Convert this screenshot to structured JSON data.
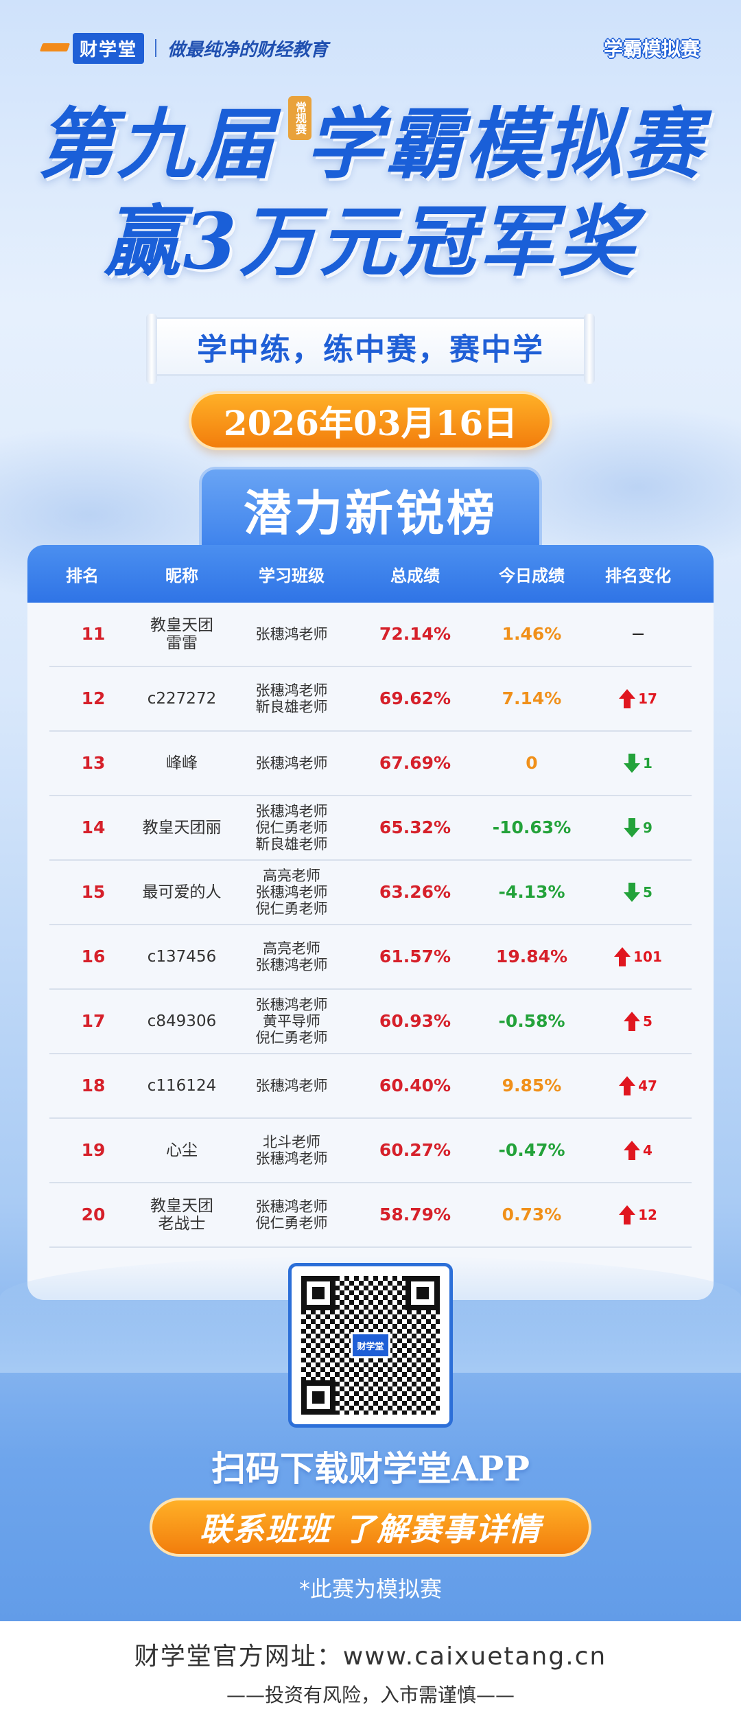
{
  "header": {
    "logo": "财学堂",
    "slogan": "做最纯净的财经教育",
    "badge": "学霸模拟赛"
  },
  "title": {
    "line1": "第九届 学霸模拟赛",
    "line2": "赢3万元冠军奖",
    "seal": "常规赛"
  },
  "tagline": "学中练，练中赛，赛中学",
  "date": "2026年03月16日",
  "board_title": "潜力新锐榜",
  "table": {
    "headers": [
      "排名",
      "昵称",
      "学习班级",
      "总成绩",
      "今日成绩",
      "排名变化"
    ],
    "rows": [
      {
        "rank": "11",
        "nick": "教皇天团\n雷雷",
        "class": "张穗鸿老师",
        "total": "72.14%",
        "today": "1.46%",
        "today_color": "#f0901a",
        "dir": "none",
        "change": ""
      },
      {
        "rank": "12",
        "nick": "c227272",
        "class": "张穗鸿老师\n靳良雄老师",
        "total": "69.62%",
        "today": "7.14%",
        "today_color": "#f0901a",
        "dir": "up",
        "change": "17"
      },
      {
        "rank": "13",
        "nick": "峰峰",
        "class": "张穗鸿老师",
        "total": "67.69%",
        "today": "0",
        "today_color": "#f0901a",
        "dir": "down",
        "change": "1"
      },
      {
        "rank": "14",
        "nick": "教皇天团丽",
        "class": "张穗鸿老师\n倪仁勇老师\n靳良雄老师",
        "total": "65.32%",
        "today": "-10.63%",
        "today_color": "#23a23a",
        "dir": "down",
        "change": "9"
      },
      {
        "rank": "15",
        "nick": "最可爱的人",
        "class": "高亮老师\n张穗鸿老师\n倪仁勇老师",
        "total": "63.26%",
        "today": "-4.13%",
        "today_color": "#23a23a",
        "dir": "down",
        "change": "5"
      },
      {
        "rank": "16",
        "nick": "c137456",
        "class": "高亮老师\n张穗鸿老师",
        "total": "61.57%",
        "today": "19.84%",
        "today_color": "#d6202a",
        "dir": "up",
        "change": "101"
      },
      {
        "rank": "17",
        "nick": "c849306",
        "class": "张穗鸿老师\n黄平导师\n倪仁勇老师",
        "total": "60.93%",
        "today": "-0.58%",
        "today_color": "#23a23a",
        "dir": "up",
        "change": "5"
      },
      {
        "rank": "18",
        "nick": "c116124",
        "class": "张穗鸿老师",
        "total": "60.40%",
        "today": "9.85%",
        "today_color": "#f0901a",
        "dir": "up",
        "change": "47"
      },
      {
        "rank": "19",
        "nick": "心尘",
        "class": "北斗老师\n张穗鸿老师",
        "total": "60.27%",
        "today": "-0.47%",
        "today_color": "#23a23a",
        "dir": "up",
        "change": "4"
      },
      {
        "rank": "20",
        "nick": "教皇天团\n老战士",
        "class": "张穗鸿老师\n倪仁勇老师",
        "total": "58.79%",
        "today": "0.73%",
        "today_color": "#f0901a",
        "dir": "up",
        "change": "12"
      }
    ]
  },
  "qr_label": "财学堂",
  "scan_text": "扫码下载财学堂APP",
  "contact_text": "联系班班  了解赛事详情",
  "note": "*此赛为模拟赛",
  "footer": {
    "url": "财学堂官方网址：www.caixuetang.cn",
    "warning": "——投资有风险，入市需谨慎——"
  }
}
